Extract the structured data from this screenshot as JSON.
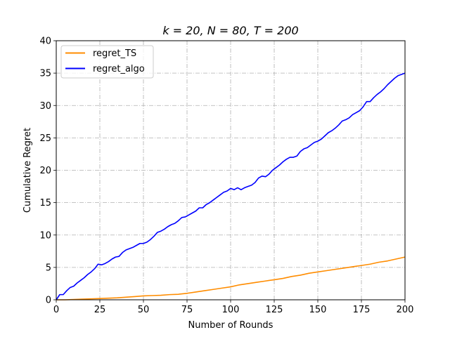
{
  "chart_data": {
    "type": "line",
    "title": "k = 20, N = 80, T = 200",
    "xlabel": "Number of Rounds",
    "ylabel": "Cumulative Regret",
    "xlim": [
      0,
      200
    ],
    "ylim": [
      0,
      40
    ],
    "xticks": [
      0,
      25,
      50,
      75,
      100,
      125,
      150,
      175,
      200
    ],
    "yticks": [
      0,
      5,
      10,
      15,
      20,
      25,
      30,
      35,
      40
    ],
    "grid": true,
    "grid_style": "dash-dot",
    "legend_position": "top-left",
    "series": [
      {
        "name": "regret_TS",
        "color": "#ff8c00",
        "x": [
          0,
          5,
          10,
          15,
          20,
          25,
          30,
          35,
          40,
          45,
          50,
          55,
          60,
          65,
          70,
          75,
          80,
          85,
          90,
          95,
          100,
          105,
          110,
          115,
          120,
          125,
          130,
          135,
          140,
          145,
          150,
          155,
          160,
          165,
          170,
          175,
          180,
          185,
          190,
          195,
          200
        ],
        "values": [
          0,
          0,
          0.05,
          0.1,
          0.15,
          0.2,
          0.25,
          0.3,
          0.4,
          0.5,
          0.6,
          0.65,
          0.7,
          0.8,
          0.85,
          1.0,
          1.2,
          1.4,
          1.6,
          1.8,
          2.0,
          2.3,
          2.5,
          2.7,
          2.9,
          3.1,
          3.3,
          3.6,
          3.8,
          4.1,
          4.3,
          4.5,
          4.7,
          4.9,
          5.1,
          5.3,
          5.5,
          5.8,
          6.0,
          6.3,
          6.6
        ]
      },
      {
        "name": "regret_algo",
        "color": "#0000ff",
        "x": [
          0,
          2,
          4,
          6,
          8,
          10,
          12,
          14,
          16,
          18,
          20,
          22,
          24,
          26,
          28,
          30,
          32,
          34,
          36,
          38,
          40,
          42,
          44,
          46,
          48,
          50,
          52,
          54,
          56,
          58,
          60,
          62,
          64,
          66,
          68,
          70,
          72,
          74,
          76,
          78,
          80,
          82,
          84,
          86,
          88,
          90,
          92,
          94,
          96,
          98,
          100,
          102,
          104,
          106,
          108,
          110,
          112,
          114,
          116,
          118,
          120,
          122,
          124,
          126,
          128,
          130,
          132,
          134,
          136,
          138,
          140,
          142,
          144,
          146,
          148,
          150,
          152,
          154,
          156,
          158,
          160,
          162,
          164,
          166,
          168,
          170,
          172,
          174,
          176,
          178,
          180,
          182,
          184,
          186,
          188,
          190,
          192,
          194,
          196,
          198,
          200
        ],
        "values": [
          0,
          0.8,
          0.8,
          1.4,
          1.9,
          2.1,
          2.6,
          3.0,
          3.4,
          3.9,
          4.3,
          4.8,
          5.5,
          5.4,
          5.6,
          5.9,
          6.3,
          6.6,
          6.7,
          7.3,
          7.7,
          7.9,
          8.1,
          8.4,
          8.7,
          8.7,
          8.9,
          9.3,
          9.8,
          10.4,
          10.6,
          10.9,
          11.3,
          11.6,
          11.8,
          12.2,
          12.7,
          12.8,
          13.1,
          13.4,
          13.7,
          14.2,
          14.2,
          14.7,
          15.0,
          15.4,
          15.8,
          16.2,
          16.6,
          16.8,
          17.2,
          17.0,
          17.3,
          17.0,
          17.3,
          17.5,
          17.7,
          18.1,
          18.8,
          19.1,
          19.0,
          19.4,
          20.0,
          20.4,
          20.8,
          21.3,
          21.7,
          22.0,
          22.0,
          22.2,
          22.9,
          23.3,
          23.5,
          23.9,
          24.3,
          24.5,
          24.8,
          25.3,
          25.8,
          26.1,
          26.5,
          27.0,
          27.6,
          27.8,
          28.1,
          28.6,
          28.9,
          29.2,
          29.8,
          30.6,
          30.6,
          31.2,
          31.7,
          32.1,
          32.6,
          33.2,
          33.7,
          34.2,
          34.6,
          34.8,
          35.0
        ]
      }
    ]
  }
}
